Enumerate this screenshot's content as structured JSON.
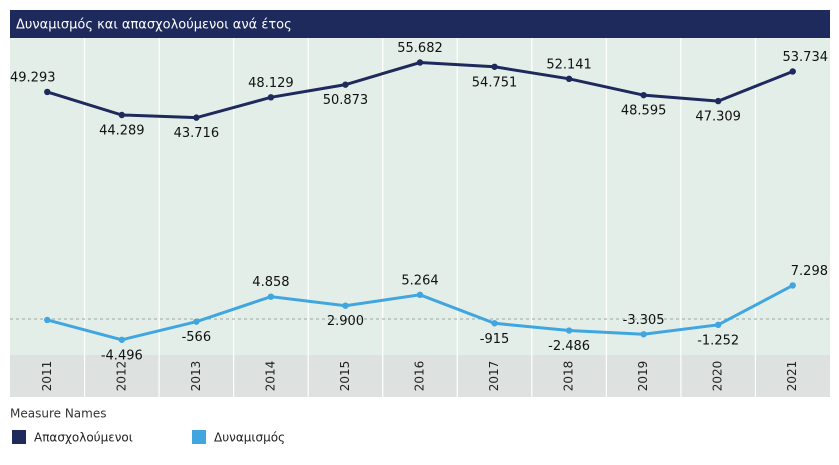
{
  "chart_data": {
    "type": "line",
    "title": "Δυναμισμός και απασχολούμενοι ανά έτος",
    "categories": [
      "2011",
      "2012",
      "2013",
      "2014",
      "2015",
      "2016",
      "2017",
      "2018",
      "2019",
      "2020",
      "2021"
    ],
    "ylim": [
      -7800,
      61000
    ],
    "legend_title": "Measure Names",
    "series": [
      {
        "name": "Απασχολούμενοι",
        "color": "#1f2a5c",
        "values": [
          49293,
          44289,
          43716,
          48129,
          50873,
          55682,
          54751,
          52141,
          48595,
          47309,
          53734
        ],
        "value_labels": [
          "49.293",
          "44.289",
          "43.716",
          "48.129",
          "50.873",
          "55.682",
          "54.751",
          "52.141",
          "48.595",
          "47.309",
          "53.734"
        ]
      },
      {
        "name": "Δυναμισμός",
        "color": "#41a6df",
        "values": [
          -200,
          -4496,
          -566,
          4858,
          2900,
          5264,
          -915,
          -2486,
          -3305,
          -1252,
          7298
        ],
        "value_labels": [
          null,
          "-4.496",
          "-566",
          "4.858",
          "2.900",
          "5.264",
          "-915",
          "-2.486",
          "-3.305",
          "-1.252",
          "7.298"
        ]
      }
    ]
  }
}
